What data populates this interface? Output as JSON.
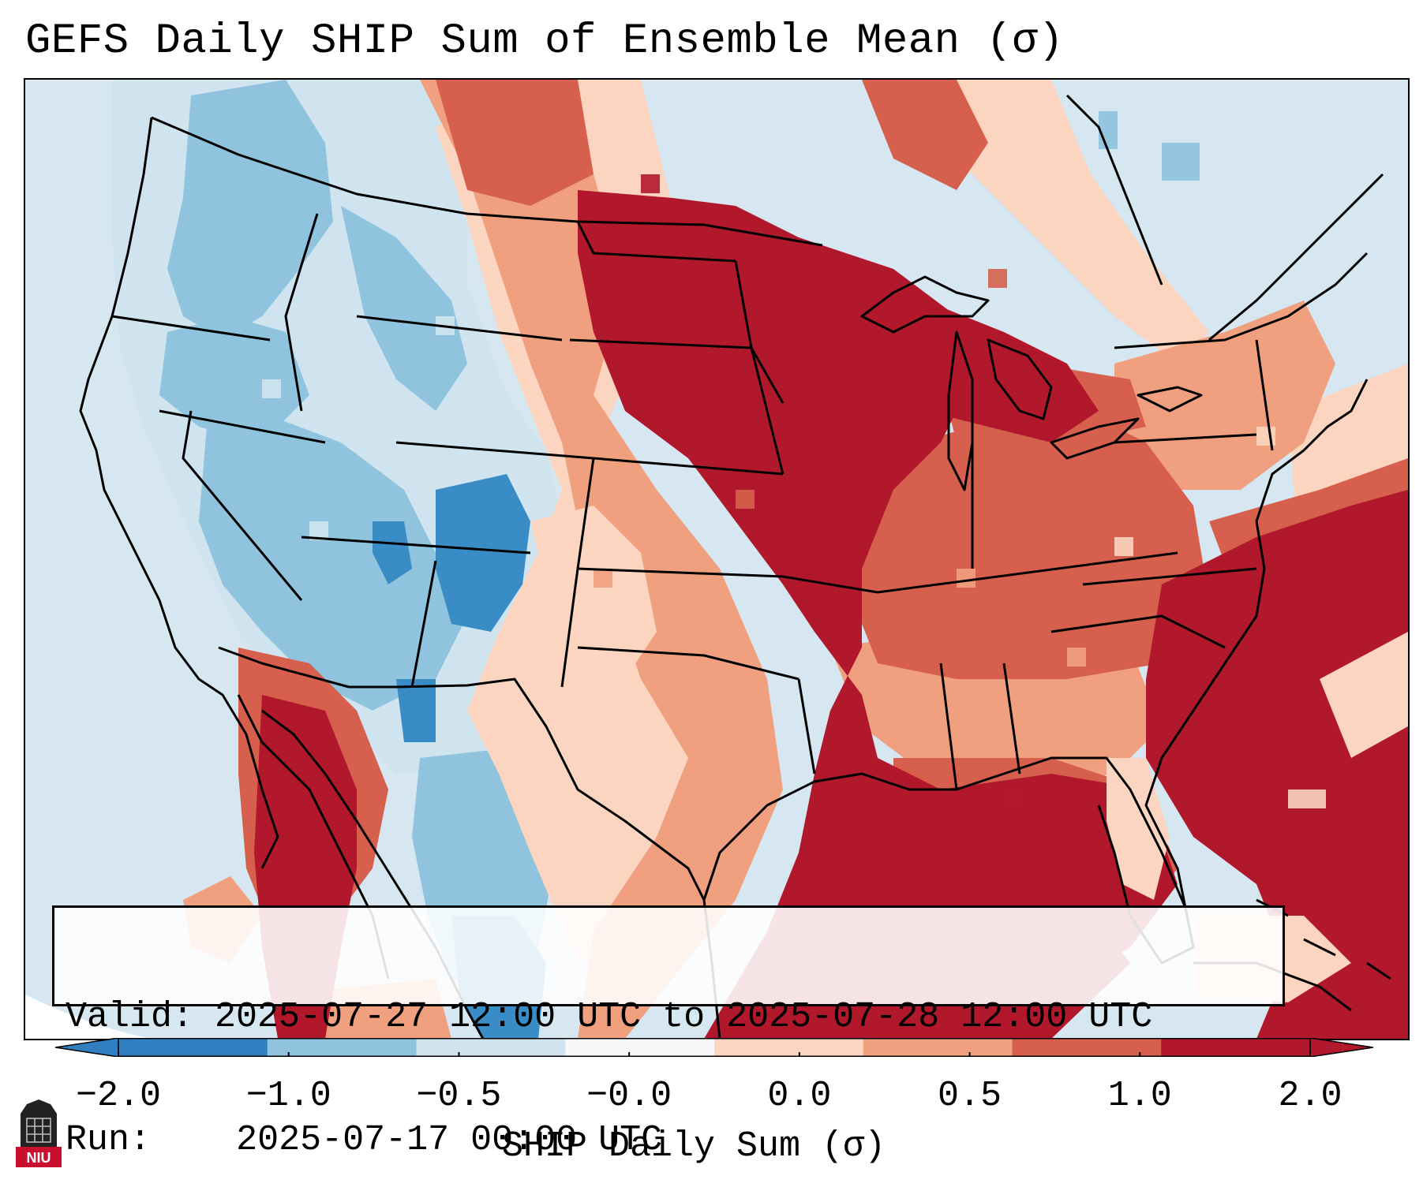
{
  "title": "GEFS Daily SHIP Sum of Ensemble Mean (σ)",
  "info": {
    "valid_label": "Valid:",
    "valid_value": "2025-07-27 12:00 UTC to 2025-07-28 12:00 UTC",
    "run_label": "Run:",
    "run_value": "2025-07-17 00:00 UTC"
  },
  "colorbar": {
    "label": "SHIP Daily Sum (σ)",
    "tick_labels": [
      "−2.0",
      "−1.0",
      "−0.5",
      "−0.0",
      "0.0",
      "0.5",
      "1.0",
      "2.0"
    ],
    "bin_colors": [
      "#2f7fc1",
      "#8fc3de",
      "#d0e4f0",
      "#f7f7f7",
      "#fbd5c0",
      "#f0a07f",
      "#d6604d",
      "#b2182b"
    ]
  },
  "logo": {
    "text": "NIU",
    "color": "#c8102e"
  },
  "colors": {
    "ocean_background": "#d6e7f1",
    "border": "#000000",
    "missing_corner": "#ffffff"
  },
  "anomaly_scale": {
    "note": "fill categories in sigma units",
    "levels": [
      -1.5,
      -0.75,
      -0.25,
      0.25,
      0.75,
      1.5
    ]
  }
}
